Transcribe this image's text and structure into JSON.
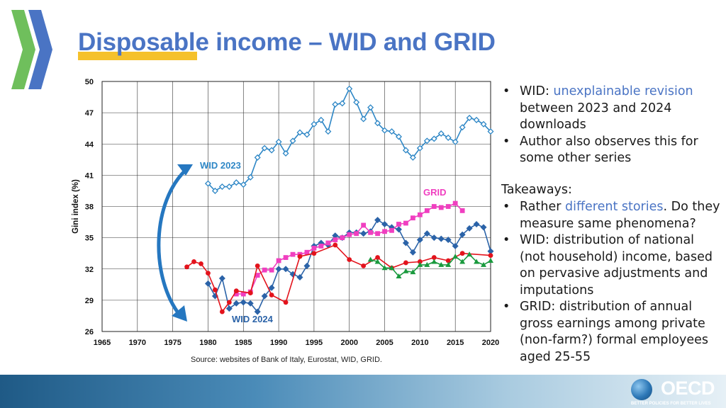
{
  "slide": {
    "title": "Disposable income – WID and GRID",
    "source": "Source: websites of Bank of Italy, Eurostat, WID, GRID."
  },
  "bullets_top": [
    {
      "prefix": "WID: ",
      "highlight": "unexplainable revision",
      "suffix": " between 2023 and 2024 downloads"
    },
    {
      "prefix": "Author also observes this for some other series",
      "highlight": "",
      "suffix": ""
    }
  ],
  "takeaways_label": "Takeaways:",
  "bullets_takeaways": [
    {
      "prefix": "Rather ",
      "highlight": "different stories",
      "suffix": ". Do they measure same phenomena?"
    },
    {
      "prefix": "WID: distribution of national (not household) income, based on pervasive adjustments and imputations",
      "highlight": "",
      "suffix": ""
    },
    {
      "prefix": "GRID: distribution of annual gross earnings among private (non-farm?) formal employees aged 25-55",
      "highlight": "",
      "suffix": ""
    }
  ],
  "logo": {
    "name": "OECD",
    "tagline": "BETTER POLICIES FOR BETTER LIVES"
  },
  "colors": {
    "title": "#4a74c4",
    "highlight": "#f5c12b",
    "wid2023": "#2e87c6",
    "wid2024": "#2b63a8",
    "grid": "#f03fc0",
    "red": "#e3131c",
    "green": "#1a9a3e"
  },
  "chart_data": {
    "type": "line",
    "ylabel": "Gini index (%)",
    "xlabel": "",
    "xlim": [
      1965,
      2020
    ],
    "ylim": [
      26,
      50
    ],
    "x_ticks": [
      1965,
      1970,
      1975,
      1980,
      1985,
      1990,
      1995,
      2000,
      2005,
      2010,
      2015,
      2020
    ],
    "y_ticks": [
      26,
      29,
      32,
      35,
      38,
      41,
      44,
      47,
      50
    ],
    "grid": true,
    "annotations": [
      {
        "text": "WID 2023",
        "color": "#2e87c6"
      },
      {
        "text": "WID 2024",
        "color": "#2b63a8"
      },
      {
        "text": "GRID",
        "color": "#f03fc0"
      }
    ],
    "series": [
      {
        "name": "WID 2023",
        "color": "#2e87c6",
        "marker": "diamond-open",
        "x": [
          1980,
          1981,
          1982,
          1983,
          1984,
          1985,
          1986,
          1987,
          1988,
          1989,
          1990,
          1991,
          1992,
          1993,
          1994,
          1995,
          1996,
          1997,
          1998,
          1999,
          2000,
          2001,
          2002,
          2003,
          2004,
          2005,
          2006,
          2007,
          2008,
          2009,
          2010,
          2011,
          2012,
          2013,
          2014,
          2015,
          2016,
          2017,
          2018,
          2019,
          2020
        ],
        "y": [
          40.2,
          39.5,
          39.9,
          39.9,
          40.3,
          40.1,
          40.8,
          42.7,
          43.6,
          43.4,
          44.2,
          43.1,
          44.3,
          45.1,
          44.9,
          45.9,
          46.3,
          45.2,
          47.8,
          47.9,
          49.3,
          48.0,
          46.4,
          47.5,
          46.0,
          45.3,
          45.2,
          44.7,
          43.4,
          42.7,
          43.6,
          44.3,
          44.5,
          45.0,
          44.6,
          44.2,
          45.6,
          46.5,
          46.3,
          45.9,
          45.2
        ]
      },
      {
        "name": "WID 2024",
        "color": "#2b63a8",
        "marker": "diamond-filled",
        "x": [
          1980,
          1981,
          1982,
          1983,
          1984,
          1985,
          1986,
          1987,
          1988,
          1989,
          1990,
          1991,
          1992,
          1993,
          1994,
          1995,
          1996,
          1997,
          1998,
          1999,
          2000,
          2001,
          2002,
          2003,
          2004,
          2005,
          2006,
          2007,
          2008,
          2009,
          2010,
          2011,
          2012,
          2013,
          2014,
          2015,
          2016,
          2017,
          2018,
          2019,
          2020
        ],
        "y": [
          30.6,
          29.4,
          31.1,
          28.2,
          28.7,
          28.8,
          28.7,
          27.9,
          29.4,
          30.2,
          32.0,
          32.0,
          31.5,
          31.2,
          32.3,
          34.2,
          34.5,
          34.3,
          35.2,
          35.0,
          35.5,
          35.5,
          35.4,
          35.6,
          36.7,
          36.3,
          36.0,
          35.8,
          34.5,
          33.6,
          34.8,
          35.4,
          35.0,
          34.9,
          34.8,
          34.2,
          35.3,
          35.9,
          36.3,
          36.0,
          33.7
        ]
      },
      {
        "name": "GRID",
        "color": "#f03fc0",
        "marker": "square",
        "x": [
          1984,
          1985,
          1986,
          1987,
          1988,
          1989,
          1990,
          1991,
          1992,
          1993,
          1994,
          1995,
          1996,
          1997,
          1998,
          1999,
          2000,
          2001,
          2002,
          2003,
          2004,
          2005,
          2006,
          2007,
          2008,
          2009,
          2010,
          2011,
          2012,
          2013,
          2014,
          2015,
          2016
        ],
        "y": [
          29.6,
          29.6,
          29.8,
          31.4,
          31.9,
          31.9,
          32.8,
          33.1,
          33.4,
          33.4,
          33.6,
          34.0,
          34.2,
          34.5,
          34.8,
          35.0,
          35.3,
          35.4,
          36.2,
          35.5,
          35.4,
          35.6,
          35.7,
          36.3,
          36.4,
          36.9,
          37.2,
          37.6,
          38.0,
          37.9,
          38.0,
          38.3,
          37.6
        ]
      },
      {
        "name": "",
        "color": "#e3131c",
        "marker": "circle",
        "x": [
          1977,
          1978,
          1979,
          1980,
          1981,
          1982,
          1983,
          1984,
          1986,
          1987,
          1989,
          1991,
          1993,
          1995,
          1998,
          2000,
          2002,
          2004,
          2006,
          2008,
          2010,
          2012,
          2014,
          2016,
          2020
        ],
        "y": [
          32.2,
          32.7,
          32.5,
          31.6,
          30.0,
          27.9,
          28.8,
          29.9,
          29.7,
          32.3,
          29.5,
          28.8,
          33.2,
          33.5,
          34.3,
          32.9,
          32.3,
          33.1,
          32.1,
          32.6,
          32.7,
          33.1,
          32.8,
          33.5,
          33.3
        ]
      },
      {
        "name": "",
        "color": "#1a9a3e",
        "marker": "triangle",
        "x": [
          2003,
          2004,
          2005,
          2006,
          2007,
          2008,
          2009,
          2010,
          2011,
          2012,
          2013,
          2014,
          2015,
          2016,
          2017,
          2018,
          2019,
          2020
        ],
        "y": [
          32.9,
          32.7,
          32.1,
          32.1,
          31.3,
          31.8,
          31.7,
          32.4,
          32.4,
          32.7,
          32.4,
          32.4,
          33.2,
          32.7,
          33.4,
          32.7,
          32.4,
          32.8
        ]
      }
    ]
  }
}
